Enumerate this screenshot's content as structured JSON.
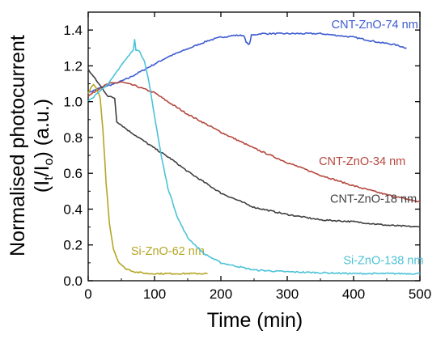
{
  "chart_data": {
    "type": "line",
    "xlabel": "Time (min)",
    "ylabel": {
      "main": "Normalised photocurrent",
      "open": "(I",
      "sub_t": "t",
      "slash": "/I",
      "sub_o": "o",
      "close": ") (a.u.)"
    },
    "xlim": [
      0,
      500
    ],
    "ylim": [
      0,
      1.5
    ],
    "x_ticks": [
      0,
      100,
      200,
      300,
      400,
      500
    ],
    "y_ticks": [
      0.0,
      0.2,
      0.4,
      0.6,
      0.8,
      1.0,
      1.2,
      1.4
    ],
    "grid": false,
    "series": [
      {
        "name": "CNT-ZnO-74 nm",
        "color": "#3d5bd1",
        "label_x": 432,
        "label_y": 1.41,
        "points": [
          [
            0,
            1.05
          ],
          [
            20,
            1.08
          ],
          [
            40,
            1.1
          ],
          [
            60,
            1.13
          ],
          [
            80,
            1.17
          ],
          [
            100,
            1.21
          ],
          [
            120,
            1.25
          ],
          [
            140,
            1.28
          ],
          [
            160,
            1.31
          ],
          [
            180,
            1.34
          ],
          [
            200,
            1.36
          ],
          [
            220,
            1.37
          ],
          [
            235,
            1.37
          ],
          [
            238,
            1.33
          ],
          [
            243,
            1.32
          ],
          [
            246,
            1.37
          ],
          [
            260,
            1.38
          ],
          [
            300,
            1.38
          ],
          [
            350,
            1.38
          ],
          [
            400,
            1.36
          ],
          [
            440,
            1.33
          ],
          [
            460,
            1.32
          ],
          [
            480,
            1.3
          ]
        ]
      },
      {
        "name": "CNT-ZnO-34 nm",
        "color": "#b5473e",
        "label_x": 413,
        "label_y": 0.645,
        "points": [
          [
            0,
            1.03
          ],
          [
            15,
            1.07
          ],
          [
            30,
            1.1
          ],
          [
            50,
            1.11
          ],
          [
            70,
            1.09
          ],
          [
            100,
            1.05
          ],
          [
            120,
            1.0
          ],
          [
            150,
            0.93
          ],
          [
            200,
            0.83
          ],
          [
            250,
            0.74
          ],
          [
            300,
            0.66
          ],
          [
            350,
            0.59
          ],
          [
            400,
            0.53
          ],
          [
            450,
            0.48
          ],
          [
            500,
            0.44
          ]
        ]
      },
      {
        "name": "CNT-ZnO-18 nm",
        "color": "#3f3f3f",
        "label_x": 430,
        "label_y": 0.435,
        "points": [
          [
            0,
            1.18
          ],
          [
            10,
            1.13
          ],
          [
            20,
            1.08
          ],
          [
            30,
            1.03
          ],
          [
            40,
            1.02
          ],
          [
            43,
            0.89
          ],
          [
            60,
            0.84
          ],
          [
            80,
            0.79
          ],
          [
            100,
            0.74
          ],
          [
            125,
            0.68
          ],
          [
            150,
            0.61
          ],
          [
            175,
            0.55
          ],
          [
            200,
            0.49
          ],
          [
            250,
            0.41
          ],
          [
            300,
            0.37
          ],
          [
            350,
            0.34
          ],
          [
            400,
            0.33
          ],
          [
            450,
            0.31
          ],
          [
            500,
            0.3
          ]
        ]
      },
      {
        "name": "Si-ZnO-62 nm",
        "color": "#b5a523",
        "label_x": 120,
        "label_y": 0.145,
        "points": [
          [
            0,
            1.05
          ],
          [
            8,
            1.1
          ],
          [
            14,
            1.06
          ],
          [
            18,
            1.02
          ],
          [
            22,
            0.85
          ],
          [
            27,
            0.55
          ],
          [
            32,
            0.32
          ],
          [
            38,
            0.18
          ],
          [
            45,
            0.11
          ],
          [
            55,
            0.07
          ],
          [
            70,
            0.05
          ],
          [
            90,
            0.04
          ],
          [
            120,
            0.04
          ],
          [
            150,
            0.04
          ],
          [
            180,
            0.04
          ]
        ]
      },
      {
        "name": "Si-ZnO-138 nm",
        "color": "#4cc2d8",
        "label_x": 445,
        "label_y": 0.093,
        "points": [
          [
            0,
            1.0
          ],
          [
            15,
            1.05
          ],
          [
            30,
            1.1
          ],
          [
            45,
            1.18
          ],
          [
            60,
            1.25
          ],
          [
            68,
            1.29
          ],
          [
            70,
            1.35
          ],
          [
            72,
            1.29
          ],
          [
            78,
            1.28
          ],
          [
            85,
            1.22
          ],
          [
            92,
            1.1
          ],
          [
            100,
            0.92
          ],
          [
            110,
            0.7
          ],
          [
            120,
            0.52
          ],
          [
            135,
            0.35
          ],
          [
            150,
            0.24
          ],
          [
            175,
            0.15
          ],
          [
            200,
            0.1
          ],
          [
            250,
            0.06
          ],
          [
            300,
            0.05
          ],
          [
            400,
            0.04
          ],
          [
            500,
            0.04
          ]
        ]
      }
    ]
  }
}
